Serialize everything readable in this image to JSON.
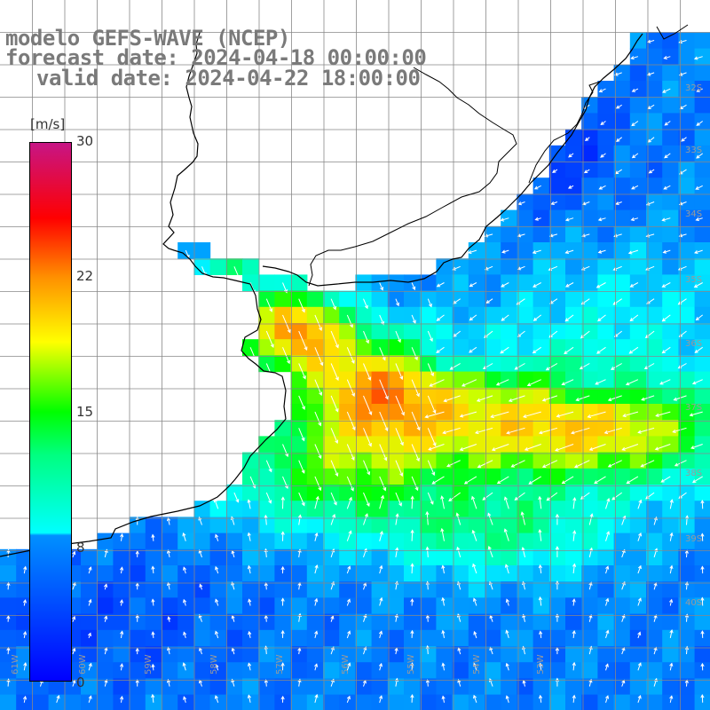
{
  "title": {
    "model": "modelo GEFS-WAVE (NCEP)",
    "forecast": "forecast date: 2024-04-18 00:00:00",
    "valid": "valid date: 2024-04-22 18:00:00"
  },
  "colorbar": {
    "unit": "[m/s]",
    "ticks": [
      "30",
      "22",
      "15",
      "8",
      "0"
    ],
    "range": [
      0,
      30
    ]
  },
  "grid": {
    "lat_labels": [
      "32S",
      "33S",
      "34S",
      "35S",
      "36S",
      "37S",
      "38S",
      "39S",
      "40S"
    ],
    "lon_labels": [
      "61W",
      "60W",
      "59W",
      "58W",
      "57W",
      "56W",
      "55W",
      "54W",
      "53W"
    ]
  },
  "colors": {
    "land": "#ffffff",
    "coast": "#000000",
    "gridline": "#888888",
    "vector": "#ffffff",
    "title_text": "#7a7a7a"
  }
}
